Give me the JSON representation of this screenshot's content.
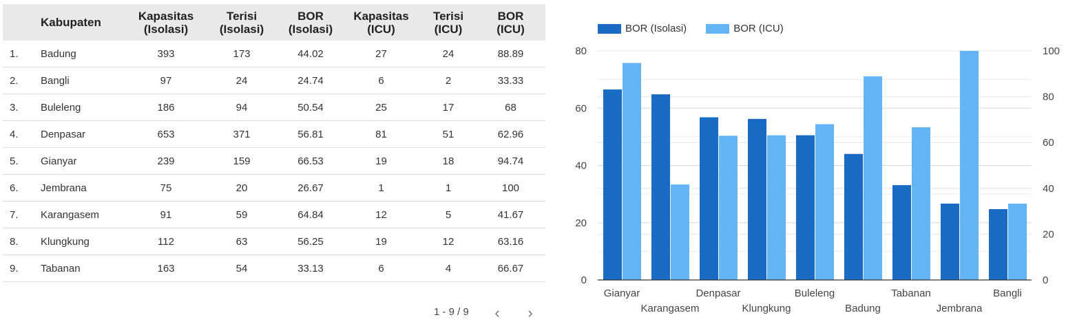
{
  "table": {
    "headers": [
      {
        "l1": "",
        "l2": ""
      },
      {
        "l1": "Kabupaten",
        "l2": ""
      },
      {
        "l1": "Kapasitas",
        "l2": "(Isolasi)"
      },
      {
        "l1": "Terisi",
        "l2": "(Isolasi)"
      },
      {
        "l1": "BOR",
        "l2": "(Isolasi)"
      },
      {
        "l1": "Kapasitas",
        "l2": "(ICU)"
      },
      {
        "l1": "Terisi",
        "l2": "(ICU)"
      },
      {
        "l1": "BOR",
        "l2": "(ICU)"
      }
    ],
    "rows": [
      [
        "1.",
        "Badung",
        "393",
        "173",
        "44.02",
        "27",
        "24",
        "88.89"
      ],
      [
        "2.",
        "Bangli",
        "97",
        "24",
        "24.74",
        "6",
        "2",
        "33.33"
      ],
      [
        "3.",
        "Buleleng",
        "186",
        "94",
        "50.54",
        "25",
        "17",
        "68"
      ],
      [
        "4.",
        "Denpasar",
        "653",
        "371",
        "56.81",
        "81",
        "51",
        "62.96"
      ],
      [
        "5.",
        "Gianyar",
        "239",
        "159",
        "66.53",
        "19",
        "18",
        "94.74"
      ],
      [
        "6.",
        "Jembrana",
        "75",
        "20",
        "26.67",
        "1",
        "1",
        "100"
      ],
      [
        "7.",
        "Karangasem",
        "91",
        "59",
        "64.84",
        "12",
        "5",
        "41.67"
      ],
      [
        "8.",
        "Klungkung",
        "112",
        "63",
        "56.25",
        "19",
        "12",
        "63.16"
      ],
      [
        "9.",
        "Tabanan",
        "163",
        "54",
        "33.13",
        "6",
        "4",
        "66.67"
      ]
    ]
  },
  "pagination": {
    "text": "1 - 9 / 9",
    "prev_icon": "chevron-left-icon",
    "next_icon": "chevron-right-icon"
  },
  "chart_data": {
    "type": "bar",
    "categories": [
      "Gianyar",
      "Karangasem",
      "Denpasar",
      "Klungkung",
      "Buleleng",
      "Badung",
      "Tabanan",
      "Jembrana",
      "Bangli"
    ],
    "series": [
      {
        "name": "BOR (Isolasi)",
        "values": [
          66.53,
          64.84,
          56.81,
          56.25,
          50.54,
          44.02,
          33.13,
          26.67,
          24.74
        ],
        "color": "#1a6bc4",
        "axis": "left"
      },
      {
        "name": "BOR (ICU)",
        "values": [
          94.74,
          41.67,
          62.96,
          63.16,
          68,
          88.89,
          66.67,
          100,
          33.33
        ],
        "color": "#64b5f6",
        "axis": "right"
      }
    ],
    "y_left": {
      "ylim": [
        0,
        80
      ],
      "ticks": [
        "0",
        "20",
        "40",
        "60",
        "80"
      ]
    },
    "y_right": {
      "ylim": [
        0,
        100
      ],
      "ticks": [
        "0",
        "20",
        "40",
        "60",
        "80",
        "100"
      ]
    },
    "grid": true,
    "legend_position": "top-left",
    "xlabel": "",
    "ylabel": ""
  }
}
